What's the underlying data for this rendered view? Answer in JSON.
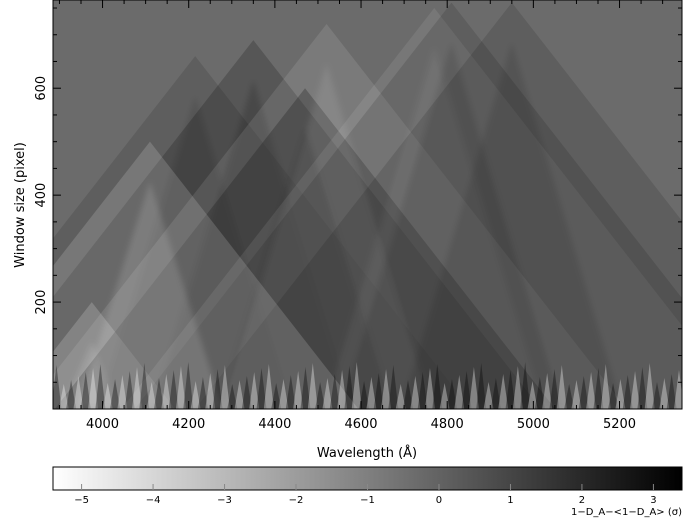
{
  "chart_data": [
    {
      "type": "heatmap",
      "title": "",
      "xlabel": "Wavelength (Å)",
      "ylabel": "Window size (pixel)",
      "xlim": [
        3885,
        5345
      ],
      "ylim": [
        0,
        765
      ],
      "x_ticks": [
        4000,
        4200,
        4400,
        4600,
        4800,
        5000,
        5200
      ],
      "y_ticks": [
        200,
        400,
        600
      ],
      "grid": false,
      "colormap": "grayscale, white = low, black = high",
      "background_value": 0,
      "features": [
        {
          "center": 3975,
          "peak_window": 200,
          "sign": -1,
          "strength": 0.9
        },
        {
          "center": 4215,
          "peak_window": 660,
          "sign": 1,
          "strength": 0.35
        },
        {
          "center": 4350,
          "peak_window": 690,
          "sign": 1,
          "strength": 0.55
        },
        {
          "center": 4470,
          "peak_window": 600,
          "sign": 1,
          "strength": 0.85
        },
        {
          "center": 4520,
          "peak_window": 720,
          "sign": -1,
          "strength": 0.3
        },
        {
          "center": 4770,
          "peak_window": 750,
          "sign": -1,
          "strength": 0.25
        },
        {
          "center": 4810,
          "peak_window": 760,
          "sign": 1,
          "strength": 0.35
        },
        {
          "center": 4950,
          "peak_window": 760,
          "sign": 1,
          "strength": 0.35
        },
        {
          "center": 4110,
          "peak_window": 500,
          "sign": -1,
          "strength": 0.45
        }
      ]
    },
    {
      "type": "colorbar",
      "range": [
        -5.4,
        3.4
      ],
      "ticks": [
        -5,
        -4,
        -3,
        -2,
        -1,
        0,
        1,
        2,
        3
      ],
      "label": "1−D_A−<1−D_A> (σ)"
    }
  ]
}
